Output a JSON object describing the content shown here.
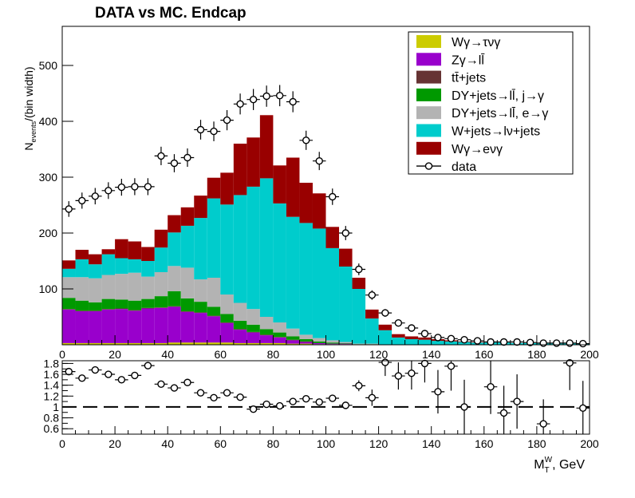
{
  "chart_data": [
    {
      "type": "bar",
      "panel": "main",
      "title": "DATA vs MC. Endcap",
      "xlabel": "",
      "ylabel": "N_events/(bin width)",
      "ylabel_main": "N",
      "ylabel_sub": "events",
      "ylabel_rest": "/(bin width)",
      "xlim": [
        0,
        200
      ],
      "ylim": [
        0,
        570
      ],
      "stacked": true,
      "bin_edges": [
        0,
        5,
        10,
        15,
        20,
        25,
        30,
        35,
        40,
        45,
        50,
        55,
        60,
        65,
        70,
        75,
        80,
        85,
        90,
        95,
        100,
        105,
        110,
        115,
        120,
        125,
        130,
        135,
        140,
        145,
        150,
        155,
        160,
        165,
        170,
        175,
        180,
        185,
        190,
        195,
        200
      ],
      "x_ticks": [
        0,
        20,
        40,
        60,
        80,
        100,
        120,
        140,
        160,
        180,
        200
      ],
      "x_tick_labels": [
        "0",
        "20",
        "40",
        "60",
        "80",
        "100",
        "120",
        "140",
        "160",
        "180",
        "200"
      ],
      "y_ticks": [
        100,
        200,
        300,
        400,
        500
      ],
      "y_tick_labels": [
        "100",
        "200",
        "300",
        "400",
        "500"
      ],
      "legend_position": "top-right",
      "series": [
        {
          "name": "Wγ→τνγ",
          "color": "#cccc00",
          "values": [
            3,
            3,
            3,
            3,
            3,
            3,
            3,
            3,
            4,
            4,
            4,
            4,
            4,
            3,
            3,
            3,
            3,
            2,
            2,
            1,
            1,
            1,
            0,
            0,
            0,
            0,
            0,
            0,
            0,
            0,
            0,
            0,
            0,
            0,
            0,
            0,
            0,
            0,
            0,
            0
          ]
        },
        {
          "name": "Zγ→ll̄",
          "color": "#9900cc",
          "values": [
            60,
            57,
            57,
            60,
            61,
            58,
            62,
            63,
            64,
            55,
            53,
            47,
            35,
            24,
            19,
            14,
            10,
            6,
            3,
            2,
            1,
            1,
            0,
            0,
            0,
            0,
            0,
            0,
            0,
            0,
            0,
            0,
            0,
            0,
            0,
            0,
            0,
            0,
            0,
            0
          ]
        },
        {
          "name": "tt̄+jets",
          "color": "#663333",
          "values": [
            1,
            1,
            1,
            1,
            1,
            1,
            1,
            1,
            1,
            1,
            1,
            1,
            1,
            1,
            1,
            1,
            1,
            1,
            1,
            0,
            0,
            0,
            0,
            0,
            0,
            0,
            0,
            0,
            0,
            0,
            0,
            0,
            0,
            0,
            0,
            0,
            0,
            0,
            0,
            0
          ]
        },
        {
          "name": "DY+jets→ll̄, j→γ",
          "color": "#009900",
          "values": [
            20,
            18,
            15,
            18,
            16,
            17,
            16,
            20,
            27,
            23,
            19,
            16,
            15,
            15,
            13,
            10,
            8,
            6,
            4,
            3,
            2,
            1,
            1,
            1,
            0,
            0,
            0,
            0,
            0,
            0,
            0,
            0,
            0,
            0,
            0,
            0,
            0,
            0,
            0,
            0
          ]
        },
        {
          "name": "DY+jets→ll̄, e→γ",
          "color": "#b3b3b3",
          "values": [
            37,
            42,
            43,
            43,
            46,
            50,
            40,
            43,
            45,
            55,
            40,
            52,
            35,
            32,
            28,
            22,
            18,
            14,
            8,
            6,
            4,
            2,
            1,
            1,
            0,
            0,
            0,
            0,
            0,
            0,
            0,
            0,
            0,
            0,
            0,
            0,
            0,
            0,
            0,
            0
          ]
        },
        {
          "name": "W+jets→lν+jets",
          "color": "#00cccc",
          "values": [
            15,
            32,
            25,
            37,
            28,
            24,
            28,
            44,
            60,
            75,
            110,
            142,
            161,
            193,
            219,
            248,
            213,
            200,
            200,
            196,
            165,
            135,
            98,
            45,
            26,
            13,
            10,
            9,
            7,
            6,
            5,
            4,
            4,
            4,
            3,
            3,
            2,
            2,
            2,
            2
          ]
        },
        {
          "name": "Wγ→eνγ",
          "color": "#990000",
          "values": [
            15,
            17,
            18,
            9,
            34,
            32,
            25,
            32,
            31,
            33,
            40,
            37,
            57,
            92,
            88,
            113,
            68,
            106,
            72,
            63,
            38,
            32,
            20,
            16,
            10,
            6,
            5,
            4,
            3,
            2,
            1,
            1,
            0,
            0,
            0,
            0,
            0,
            0,
            0,
            0
          ]
        }
      ],
      "data": {
        "name": "data",
        "values": [
          243,
          258,
          266,
          276,
          282,
          283,
          283,
          338,
          325,
          335,
          385,
          382,
          402,
          431,
          439,
          445,
          446,
          435,
          366,
          329,
          265,
          200,
          135,
          89,
          57,
          39,
          30,
          20,
          13,
          11,
          9,
          7,
          5,
          5,
          5,
          4,
          3,
          3,
          3,
          2
        ]
      }
    },
    {
      "type": "scatter",
      "panel": "ratio",
      "xlabel": "M_T^W, GeV",
      "xlabel_main": "M",
      "xlabel_sub": "T",
      "xlabel_sup": "W",
      "xlabel_rest": ", GeV",
      "ylabel": "",
      "xlim": [
        0,
        200
      ],
      "ylim": [
        0.5,
        1.85
      ],
      "reference_line": 1,
      "x_ticks": [
        0,
        20,
        40,
        60,
        80,
        100,
        120,
        140,
        160,
        180,
        200
      ],
      "x_tick_labels": [
        "0",
        "20",
        "40",
        "60",
        "80",
        "100",
        "120",
        "140",
        "160",
        "180",
        "200"
      ],
      "y_ticks": [
        0.6,
        0.8,
        1,
        1.2,
        1.4,
        1.6,
        1.8
      ],
      "y_tick_labels": [
        "0.6",
        "0.8",
        "1",
        "1.2",
        "1.4",
        "1.6",
        "1.8"
      ],
      "x": [
        2.5,
        7.5,
        12.5,
        17.5,
        22.5,
        27.5,
        32.5,
        37.5,
        42.5,
        47.5,
        52.5,
        57.5,
        62.5,
        67.5,
        72.5,
        77.5,
        82.5,
        87.5,
        92.5,
        97.5,
        102.5,
        107.5,
        112.5,
        117.5,
        122.5,
        127.5,
        132.5,
        137.5,
        142.5,
        147.5,
        152.5,
        157.5,
        162.5,
        167.5,
        172.5,
        177.5,
        182.5,
        187.5,
        192.5,
        197.5
      ],
      "values": [
        1.65,
        1.53,
        1.68,
        1.6,
        1.5,
        1.58,
        1.76,
        1.42,
        1.35,
        1.45,
        1.26,
        1.17,
        1.26,
        1.18,
        0.96,
        1.05,
        1.02,
        1.1,
        1.15,
        1.09,
        1.16,
        1.03,
        1.39,
        1.17,
        1.82,
        1.57,
        1.62,
        1.8,
        1.28,
        1.75,
        1.0,
        null,
        1.37,
        0.89,
        1.1,
        null,
        0.69,
        null,
        1.81,
        0.98
      ],
      "errors": [
        0.06,
        0.06,
        0.06,
        0.06,
        0.06,
        0.06,
        0.06,
        0.06,
        0.06,
        0.06,
        0.06,
        0.05,
        0.05,
        0.04,
        0.04,
        0.04,
        0.04,
        0.04,
        0.04,
        0.04,
        0.05,
        0.06,
        0.1,
        0.15,
        0.25,
        0.25,
        0.3,
        0.35,
        0.4,
        0.45,
        0.5,
        null,
        0.5,
        0.5,
        0.5,
        null,
        0.45,
        null,
        0.5,
        0.5
      ]
    }
  ]
}
